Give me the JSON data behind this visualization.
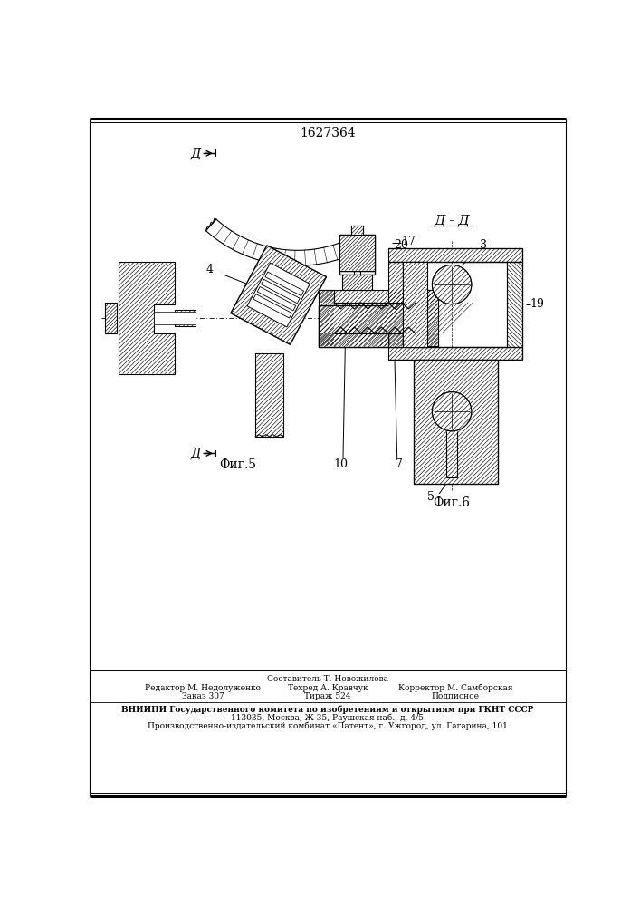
{
  "title": "1627364",
  "fig5_label": "Фиг.5",
  "fig6_label": "Фиг.6",
  "section_label": "Д - Д",
  "d_label": "Д",
  "label_4": "4",
  "label_7": "7",
  "label_10": "10",
  "label_17": "17",
  "label_3": "3",
  "label_5": "5",
  "label_19": "19",
  "label_20": "20",
  "footnote_line1": "Составитель Т. Новожилова",
  "footnote_line2a": "Редактор М. Недолуженко",
  "footnote_line2b": "Техред А. Кравчук",
  "footnote_line2c": "Корректор М. Самборская",
  "footnote_line3a": "Заказ 307",
  "footnote_line3b": "Тираж 524",
  "footnote_line3c": "Подписное",
  "footnote_line4": "ВНИИПИ Государственного комитета по изобретениям и открытиям при ГКНТ СССР",
  "footnote_line5": "113035, Москва, Ж-35, Раушская наб., д. 4/5",
  "footnote_line6": "Производственно-издательский комбинат «Патент», г. Ужгород, ул. Гагарина, 101",
  "bg_color": "#ffffff",
  "line_color": "#000000"
}
